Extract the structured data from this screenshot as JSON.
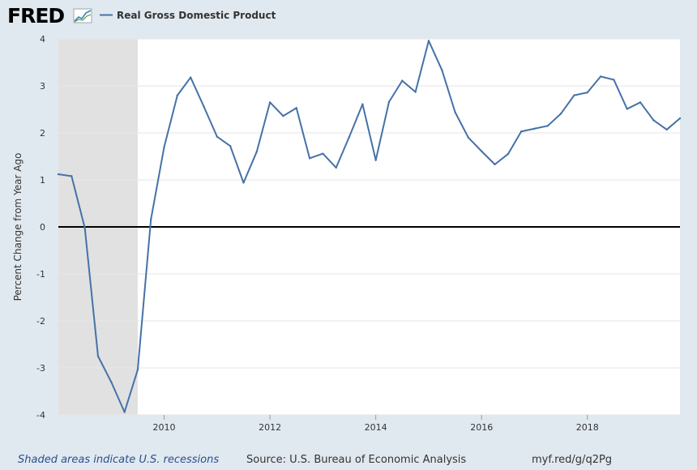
{
  "header": {
    "logo_text": "FRED",
    "logo_icon": "chart-line-icon",
    "legend_label": "Real Gross Domestic Product"
  },
  "footer": {
    "recession_note": "Shaded areas indicate U.S. recessions",
    "source": "Source: U.S. Bureau of Economic Analysis",
    "link": "myf.red/g/q2Pg"
  },
  "colors": {
    "background": "#e1e9f0",
    "plot_background": "#ffffff",
    "line": "#4572a7",
    "recession": "#e1e1e1",
    "logo": "#000000"
  },
  "chart_data": {
    "type": "line",
    "title": "",
    "ylabel": "Percent Change from Year Ago",
    "xlabel": "",
    "xlim": [
      2008.0,
      2019.75
    ],
    "ylim": [
      -4,
      4
    ],
    "yticks": [
      -4,
      -3,
      -2,
      -1,
      0,
      1,
      2,
      3,
      4
    ],
    "xticks": [
      2010,
      2012,
      2014,
      2016,
      2018
    ],
    "recessions": [
      [
        2008.0,
        2009.5
      ]
    ],
    "series": [
      {
        "name": "Real Gross Domestic Product",
        "x": [
          2008.0,
          2008.25,
          2008.5,
          2008.75,
          2009.0,
          2009.25,
          2009.5,
          2009.75,
          2010.0,
          2010.25,
          2010.5,
          2010.75,
          2011.0,
          2011.25,
          2011.5,
          2011.75,
          2012.0,
          2012.25,
          2012.5,
          2012.75,
          2013.0,
          2013.25,
          2013.5,
          2013.75,
          2014.0,
          2014.25,
          2014.5,
          2014.75,
          2015.0,
          2015.25,
          2015.5,
          2015.75,
          2016.0,
          2016.25,
          2016.5,
          2016.75,
          2017.0,
          2017.25,
          2017.5,
          2017.75,
          2018.0,
          2018.25,
          2018.5,
          2018.75,
          2019.0,
          2019.25,
          2019.5,
          2019.75
        ],
        "values": [
          1.12,
          1.08,
          -0.02,
          -2.75,
          -3.3,
          -3.94,
          -3.04,
          0.16,
          1.7,
          2.8,
          3.18,
          2.56,
          1.92,
          1.72,
          0.94,
          1.6,
          2.65,
          2.36,
          2.53,
          1.46,
          1.56,
          1.26,
          1.92,
          2.61,
          1.42,
          2.66,
          3.11,
          2.87,
          3.96,
          3.34,
          2.44,
          1.9,
          1.61,
          1.33,
          1.55,
          2.03,
          2.09,
          2.15,
          2.41,
          2.8,
          2.86,
          3.2,
          3.13,
          2.51,
          2.65,
          2.27,
          2.07,
          2.31
        ]
      }
    ]
  }
}
